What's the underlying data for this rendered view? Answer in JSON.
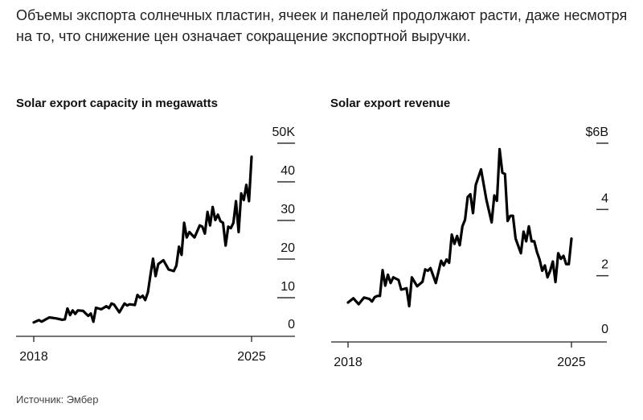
{
  "headline": "Объемы экспорта солнечных пластин, ячеек и панелей продолжают расти, даже несмотря на то, что снижение цен означает сокращение экспортной выручки.",
  "source": "Источник: Эмбер",
  "chart_data": [
    {
      "type": "line",
      "title": "Solar export capacity in megawatts",
      "x_ticks": [
        "2018",
        "2025"
      ],
      "y_ticks": [
        "0",
        "10",
        "20",
        "30",
        "40",
        "50K"
      ],
      "ylim": [
        0,
        50000
      ],
      "xlim": [
        "2018-01",
        "2025-01"
      ],
      "grid": false,
      "color": "#000000",
      "points": [
        [
          "2018-01",
          3600
        ],
        [
          "2018-03",
          4200
        ],
        [
          "2018-04",
          3800
        ],
        [
          "2018-07",
          4900
        ],
        [
          "2018-09",
          4700
        ],
        [
          "2018-10",
          4600
        ],
        [
          "2018-12",
          4300
        ],
        [
          "2019-01",
          4400
        ],
        [
          "2019-02",
          7200
        ],
        [
          "2019-03",
          5500
        ],
        [
          "2019-04",
          6700
        ],
        [
          "2019-05",
          5800
        ],
        [
          "2019-06",
          6700
        ],
        [
          "2019-08",
          6600
        ],
        [
          "2019-10",
          5300
        ],
        [
          "2019-11",
          5900
        ],
        [
          "2019-12",
          3800
        ],
        [
          "2020-01",
          7400
        ],
        [
          "2020-03",
          7000
        ],
        [
          "2020-05",
          7800
        ],
        [
          "2020-06",
          7300
        ],
        [
          "2020-07",
          8500
        ],
        [
          "2020-08",
          8200
        ],
        [
          "2020-10",
          6200
        ],
        [
          "2020-12",
          8500
        ],
        [
          "2021-01",
          8000
        ],
        [
          "2021-02",
          8300
        ],
        [
          "2021-04",
          8100
        ],
        [
          "2021-05",
          10700
        ],
        [
          "2021-06",
          10000
        ],
        [
          "2021-07",
          10500
        ],
        [
          "2021-08",
          9400
        ],
        [
          "2021-09",
          11400
        ],
        [
          "2021-10",
          15900
        ],
        [
          "2021-11",
          20100
        ],
        [
          "2021-12",
          15600
        ],
        [
          "2022-01",
          18700
        ],
        [
          "2022-03",
          19700
        ],
        [
          "2022-05",
          17300
        ],
        [
          "2022-07",
          16900
        ],
        [
          "2022-08",
          18300
        ],
        [
          "2022-09",
          23200
        ],
        [
          "2022-10",
          21100
        ],
        [
          "2022-11",
          29400
        ],
        [
          "2022-12",
          25600
        ],
        [
          "2023-01",
          27000
        ],
        [
          "2023-03",
          25600
        ],
        [
          "2023-05",
          28700
        ],
        [
          "2023-06",
          28400
        ],
        [
          "2023-07",
          26600
        ],
        [
          "2023-08",
          32200
        ],
        [
          "2023-09",
          28700
        ],
        [
          "2023-10",
          33500
        ],
        [
          "2023-11",
          30100
        ],
        [
          "2023-12",
          31500
        ],
        [
          "2024-01",
          29800
        ],
        [
          "2024-02",
          29400
        ],
        [
          "2024-03",
          23500
        ],
        [
          "2024-04",
          28400
        ],
        [
          "2024-05",
          28000
        ],
        [
          "2024-06",
          29400
        ],
        [
          "2024-07",
          35000
        ],
        [
          "2024-08",
          27000
        ],
        [
          "2024-09",
          37000
        ],
        [
          "2024-10",
          35300
        ],
        [
          "2024-11",
          39200
        ],
        [
          "2024-12",
          35000
        ],
        [
          "2025-01",
          46500
        ]
      ]
    },
    {
      "type": "line",
      "title": "Solar export revenue",
      "x_ticks": [
        "2018",
        "2025"
      ],
      "y_ticks": [
        "0",
        "2",
        "4",
        "$6B"
      ],
      "ylim": [
        0,
        6
      ],
      "xlim": [
        "2018-01",
        "2025-01"
      ],
      "grid": false,
      "color": "#000000",
      "points": [
        [
          "2018-01",
          1.19
        ],
        [
          "2018-03",
          1.32
        ],
        [
          "2018-05",
          1.14
        ],
        [
          "2018-07",
          1.34
        ],
        [
          "2018-09",
          1.3
        ],
        [
          "2018-10",
          1.22
        ],
        [
          "2018-11",
          1.35
        ],
        [
          "2018-12",
          1.39
        ],
        [
          "2019-01",
          1.39
        ],
        [
          "2019-02",
          2.17
        ],
        [
          "2019-03",
          1.7
        ],
        [
          "2019-04",
          2.03
        ],
        [
          "2019-05",
          1.78
        ],
        [
          "2019-06",
          1.95
        ],
        [
          "2019-08",
          1.87
        ],
        [
          "2019-09",
          1.58
        ],
        [
          "2019-11",
          1.62
        ],
        [
          "2019-12",
          1.08
        ],
        [
          "2020-01",
          1.95
        ],
        [
          "2020-03",
          1.68
        ],
        [
          "2020-05",
          1.82
        ],
        [
          "2020-06",
          2.19
        ],
        [
          "2020-07",
          2.15
        ],
        [
          "2020-08",
          2.23
        ],
        [
          "2020-10",
          1.78
        ],
        [
          "2020-12",
          2.45
        ],
        [
          "2021-01",
          2.31
        ],
        [
          "2021-02",
          2.49
        ],
        [
          "2021-03",
          2.39
        ],
        [
          "2021-04",
          3.24
        ],
        [
          "2021-05",
          2.96
        ],
        [
          "2021-06",
          3.2
        ],
        [
          "2021-07",
          2.92
        ],
        [
          "2021-08",
          3.49
        ],
        [
          "2021-09",
          3.69
        ],
        [
          "2021-10",
          4.38
        ],
        [
          "2021-11",
          4.46
        ],
        [
          "2021-12",
          3.89
        ],
        [
          "2022-01",
          4.74
        ],
        [
          "2022-03",
          5.21
        ],
        [
          "2022-05",
          4.3
        ],
        [
          "2022-07",
          3.61
        ],
        [
          "2022-08",
          4.42
        ],
        [
          "2022-09",
          4.26
        ],
        [
          "2022-10",
          5.82
        ],
        [
          "2022-11",
          5.11
        ],
        [
          "2022-12",
          5.07
        ],
        [
          "2023-01",
          3.65
        ],
        [
          "2023-02",
          3.81
        ],
        [
          "2023-03",
          3.81
        ],
        [
          "2023-04",
          3.12
        ],
        [
          "2023-06",
          2.68
        ],
        [
          "2023-07",
          3.33
        ],
        [
          "2023-08",
          3.04
        ],
        [
          "2023-09",
          3.49
        ],
        [
          "2023-10",
          3.04
        ],
        [
          "2023-11",
          3.04
        ],
        [
          "2023-12",
          2.72
        ],
        [
          "2024-01",
          2.49
        ],
        [
          "2024-02",
          2.15
        ],
        [
          "2024-03",
          2.31
        ],
        [
          "2024-04",
          1.95
        ],
        [
          "2024-05",
          2.15
        ],
        [
          "2024-06",
          2.43
        ],
        [
          "2024-07",
          1.81
        ],
        [
          "2024-08",
          2.68
        ],
        [
          "2024-09",
          2.51
        ],
        [
          "2024-10",
          2.6
        ],
        [
          "2024-11",
          2.35
        ],
        [
          "2024-12",
          2.35
        ],
        [
          "2025-01",
          3.12
        ]
      ]
    }
  ]
}
